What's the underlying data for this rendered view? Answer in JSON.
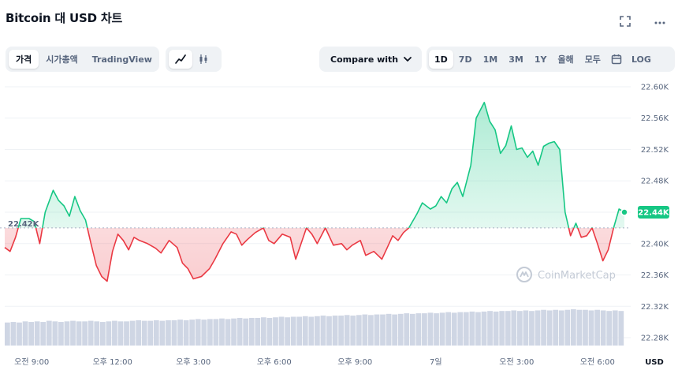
{
  "header": {
    "title": "Bitcoin 대 USD 차트",
    "fullscreen_icon": "expand-icon",
    "more_icon": "more-icon"
  },
  "toolbar": {
    "metric_tabs": [
      {
        "label": "가격",
        "active": true
      },
      {
        "label": "시가총액",
        "active": false
      },
      {
        "label": "TradingView",
        "active": false
      }
    ],
    "chart_type_icons": [
      "line-chart-icon",
      "candlestick-icon"
    ],
    "compare_label": "Compare with",
    "ranges": [
      {
        "label": "1D",
        "active": true
      },
      {
        "label": "7D",
        "active": false
      },
      {
        "label": "1M",
        "active": false
      },
      {
        "label": "3M",
        "active": false
      },
      {
        "label": "1Y",
        "active": false
      },
      {
        "label": "올해",
        "active": false
      },
      {
        "label": "모두",
        "active": false
      }
    ],
    "calendar_icon": "calendar-icon",
    "log_label": "LOG"
  },
  "colors": {
    "up": "#16c784",
    "down": "#ea3943",
    "volume": "#cfd6e4",
    "grid": "#eff2f5",
    "axis_text": "#58667e"
  },
  "watermark": "CoinMarketCap",
  "chart_data": {
    "type": "line",
    "x_ticks": [
      "오전 9:00",
      "오후 12:00",
      "오후 3:00",
      "오후 6:00",
      "오후 9:00",
      "7일",
      "오전 3:00",
      "오전 6:00"
    ],
    "y_ticks": [
      "22.60K",
      "22.56K",
      "22.52K",
      "22.48K",
      "22.44K",
      "22.40K",
      "22.36K",
      "22.32K",
      "22.28K"
    ],
    "y_unit": "USD",
    "ylim": [
      22270,
      22610
    ],
    "reference_value": 22420,
    "reference_label": "22.42K",
    "current_value": 22440,
    "current_label": "22.44K",
    "x_start": 8.0,
    "x_end": 31.0,
    "series": [
      {
        "x": [
          8.0,
          8.2,
          8.4,
          8.6,
          8.9,
          9.1,
          9.3,
          9.5,
          9.8,
          10.0,
          10.2,
          10.4,
          10.6,
          10.8,
          11.0,
          11.2,
          11.4,
          11.6,
          11.8,
          12.0,
          12.2,
          12.4,
          12.6,
          12.8,
          13.0,
          13.3,
          13.6,
          13.8,
          14.1,
          14.4,
          14.6,
          14.8,
          15.0,
          15.3,
          15.6,
          15.8,
          16.1,
          16.4,
          16.6,
          16.8,
          17.0,
          17.3,
          17.6,
          17.8,
          18.0,
          18.3,
          18.6,
          18.8,
          19.0,
          19.2,
          19.4,
          19.6,
          19.9,
          20.2,
          20.5,
          20.7,
          20.9,
          21.2,
          21.4,
          21.7,
          22.0,
          22.2,
          22.4,
          22.6,
          22.8,
          23.0,
          23.3,
          23.5,
          23.8,
          24.0,
          24.2,
          24.4,
          24.6,
          24.8,
          25.0,
          25.3,
          25.5,
          25.8,
          26.0,
          26.2,
          26.4,
          26.6,
          26.8,
          27.0,
          27.2,
          27.4,
          27.6,
          27.8,
          28.0,
          28.2,
          28.4,
          28.6,
          28.8,
          29.0,
          29.2,
          29.4,
          29.6,
          29.8,
          30.0,
          30.2,
          30.4,
          30.6,
          30.8,
          31.0
        ],
        "y": [
          22395,
          22390,
          22408,
          22432,
          22432,
          22428,
          22400,
          22440,
          22468,
          22455,
          22448,
          22435,
          22460,
          22442,
          22430,
          22400,
          22372,
          22358,
          22352,
          22390,
          22412,
          22404,
          22392,
          22408,
          22404,
          22400,
          22394,
          22388,
          22404,
          22395,
          22375,
          22368,
          22355,
          22358,
          22368,
          22380,
          22400,
          22415,
          22412,
          22398,
          22405,
          22414,
          22420,
          22404,
          22400,
          22412,
          22408,
          22380,
          22400,
          22420,
          22412,
          22400,
          22420,
          22398,
          22400,
          22392,
          22398,
          22404,
          22385,
          22390,
          22380,
          22395,
          22410,
          22404,
          22414,
          22420,
          22438,
          22452,
          22444,
          22448,
          22460,
          22452,
          22470,
          22478,
          22460,
          22500,
          22560,
          22580,
          22556,
          22545,
          22515,
          22525,
          22550,
          22520,
          22522,
          22510,
          22518,
          22500,
          22524,
          22528,
          22530,
          22520,
          22440,
          22410,
          22426,
          22408,
          22410,
          22420,
          22400,
          22378,
          22392,
          22420,
          22444,
          22440
        ]
      }
    ],
    "volume": [
      40,
      41,
      40,
      42,
      41,
      42,
      41,
      43,
      42,
      41,
      42,
      43,
      42,
      42,
      43,
      42,
      41,
      42,
      43,
      42,
      42,
      43,
      44,
      43,
      43,
      44,
      43,
      44,
      44,
      45,
      44,
      45,
      46,
      45,
      46,
      46,
      47,
      46,
      47,
      48,
      47,
      48,
      48,
      49,
      48,
      49,
      50,
      49,
      50,
      50,
      51,
      50,
      51,
      52,
      51,
      52,
      52,
      53,
      52,
      53,
      54,
      53,
      54,
      54,
      55,
      54,
      55,
      56,
      55,
      56,
      56,
      57,
      56,
      57,
      58,
      57,
      58,
      58,
      59,
      58,
      59,
      60,
      59,
      60,
      60,
      61,
      60,
      61,
      60,
      61,
      62,
      61,
      62,
      61,
      62,
      63,
      62,
      62,
      61,
      62,
      61,
      60,
      61,
      60
    ]
  }
}
